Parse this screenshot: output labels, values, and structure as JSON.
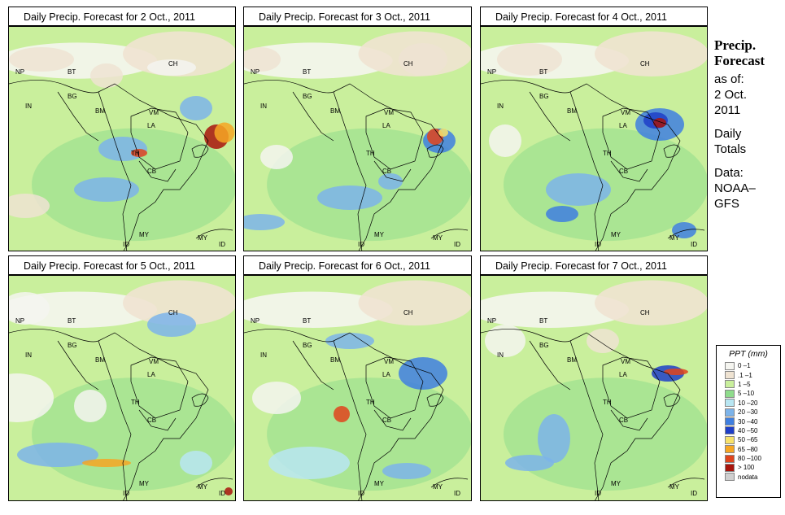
{
  "panels": [
    {
      "title": "Daily Precip. Forecast for  2 Oct., 2011"
    },
    {
      "title": "Daily Precip. Forecast for  3 Oct., 2011"
    },
    {
      "title": "Daily Precip. Forecast for  4 Oct., 2011"
    },
    {
      "title": "Daily Precip. Forecast for  5 Oct., 2011"
    },
    {
      "title": "Daily Precip. Forecast for  6 Oct., 2011"
    },
    {
      "title": "Daily Precip. Forecast for  7 Oct., 2011"
    }
  ],
  "map_labels": [
    "NP",
    "BT",
    "IN",
    "BG",
    "BM",
    "CH",
    "VM",
    "LA",
    "TH",
    "CB",
    "MY",
    "ID",
    "MY",
    "ID"
  ],
  "sidebar": {
    "line1": "Precip.",
    "line2": "Forecast",
    "asof": "as of:",
    "date1": "2 Oct.",
    "date2": "2011",
    "daily1": "Daily",
    "daily2": "Totals",
    "data1": "Data:",
    "data2": "NOAA–",
    "data3": "GFS"
  },
  "legend": {
    "title": "PPT (mm)",
    "items": [
      {
        "label": "0 –1",
        "color": "#f5f5f0"
      },
      {
        "label": ".1 –1",
        "color": "#efe3d2"
      },
      {
        "label": "1 –5",
        "color": "#c9ef9c"
      },
      {
        "label": "5 –10",
        "color": "#8fdc8c"
      },
      {
        "label": "10 –20",
        "color": "#b8e6f2"
      },
      {
        "label": "20 –30",
        "color": "#7db4ea"
      },
      {
        "label": "30 –40",
        "color": "#3f7fe0"
      },
      {
        "label": "40 –50",
        "color": "#1f3fc8"
      },
      {
        "label": "50 –65",
        "color": "#f7e26b"
      },
      {
        "label": "65 –80",
        "color": "#f6a623"
      },
      {
        "label": "80 –100",
        "color": "#e0441c"
      },
      {
        "label": "> 100",
        "color": "#a8140c"
      },
      {
        "label": "nodata",
        "color": "#cfcfcf"
      }
    ]
  }
}
